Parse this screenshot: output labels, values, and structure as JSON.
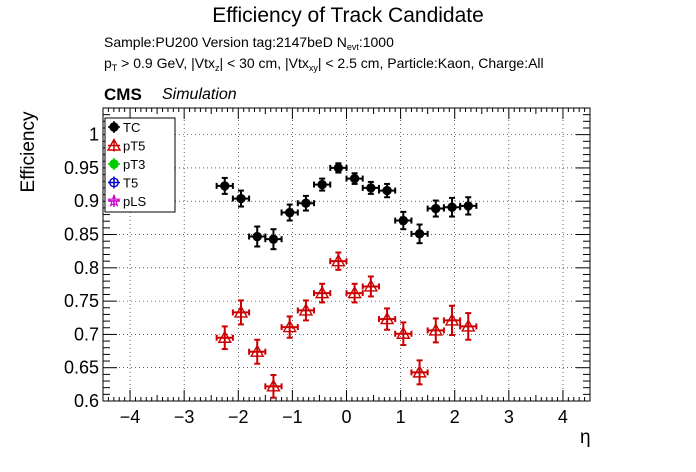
{
  "chart_data": {
    "type": "scatter",
    "title": "Efficiency of Track Candidate",
    "info_line1": {
      "prefix": "Sample:PU200   Version tag:2147beD  N",
      "sub": "evt",
      "suffix": ":1000"
    },
    "info_line2": {
      "p": "p",
      "p_sub": "T",
      "a": " > 0.9 GeV, |Vtx",
      "a_sub": "z",
      "b": "| < 30 cm, |Vtx",
      "b_sub": "xy",
      "c": "| < 2.5 cm, Particle:Kaon, Charge:All"
    },
    "cms_label": "CMS",
    "simulation_label": "Simulation",
    "xlabel": "η",
    "ylabel": "Efficiency",
    "xlim": [
      -4.5,
      4.5
    ],
    "ylim": [
      0.6,
      1.04
    ],
    "xticks": [
      -4,
      -3,
      -2,
      -1,
      0,
      1,
      2,
      3,
      4
    ],
    "xtick_labels": [
      "−4",
      "−3",
      "−2",
      "−1",
      "0",
      "1",
      "2",
      "3",
      "4"
    ],
    "yticks": [
      0.6,
      0.65,
      0.7,
      0.75,
      0.8,
      0.85,
      0.9,
      0.95,
      1.0
    ],
    "ytick_labels": [
      "0.6",
      "0.65",
      "0.7",
      "0.75",
      "0.8",
      "0.85",
      "0.9",
      "0.95",
      "1"
    ],
    "grid": true,
    "legend_position": "top-left",
    "legend": [
      {
        "name": "TC",
        "color": "#000000",
        "marker": "circle-filled"
      },
      {
        "name": "pT5",
        "color": "#cc0000",
        "marker": "triangle-open"
      },
      {
        "name": "pT3",
        "color": "#00cc00",
        "marker": "circle-filled"
      },
      {
        "name": "T5",
        "color": "#0000cc",
        "marker": "circle-open"
      },
      {
        "name": "pLS",
        "color": "#cc00cc",
        "marker": "star-open"
      }
    ],
    "series": [
      {
        "name": "TC",
        "color": "#000000",
        "marker": "circle-filled",
        "x": [
          -2.25,
          -1.95,
          -1.65,
          -1.35,
          -1.05,
          -0.75,
          -0.45,
          -0.15,
          0.15,
          0.45,
          0.75,
          1.05,
          1.35,
          1.65,
          1.95,
          2.25
        ],
        "xerr": 0.15,
        "y": [
          0.923,
          0.904,
          0.847,
          0.843,
          0.883,
          0.897,
          0.925,
          0.95,
          0.934,
          0.92,
          0.916,
          0.871,
          0.851,
          0.889,
          0.891,
          0.893
        ],
        "yerr": [
          0.012,
          0.012,
          0.015,
          0.015,
          0.012,
          0.011,
          0.009,
          0.007,
          0.008,
          0.009,
          0.01,
          0.013,
          0.014,
          0.012,
          0.014,
          0.013
        ]
      },
      {
        "name": "pT5",
        "color": "#cc0000",
        "marker": "triangle-open",
        "x": [
          -2.25,
          -1.95,
          -1.65,
          -1.35,
          -1.05,
          -0.75,
          -0.45,
          -0.15,
          0.15,
          0.45,
          0.75,
          1.05,
          1.35,
          1.65,
          1.95,
          2.25
        ],
        "xerr": 0.15,
        "y": [
          0.695,
          0.733,
          0.674,
          0.622,
          0.711,
          0.736,
          0.762,
          0.81,
          0.762,
          0.772,
          0.723,
          0.701,
          0.643,
          0.706,
          0.721,
          0.712
        ],
        "yerr": [
          0.017,
          0.018,
          0.018,
          0.017,
          0.016,
          0.015,
          0.014,
          0.013,
          0.014,
          0.015,
          0.016,
          0.017,
          0.018,
          0.018,
          0.022,
          0.02
        ]
      }
    ]
  }
}
